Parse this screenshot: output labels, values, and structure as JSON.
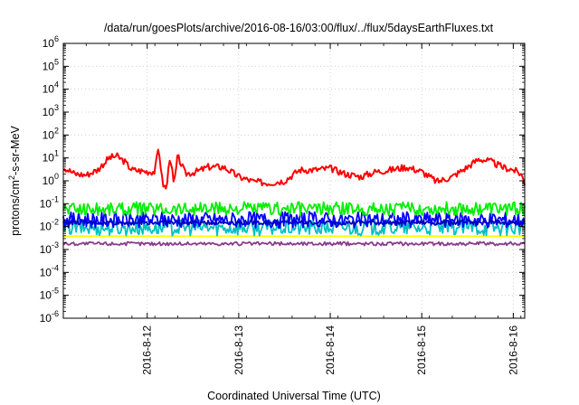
{
  "chart_data": {
    "type": "line",
    "title": "/data/run/goesPlots/archive/2016-08-16/03:00/flux/../flux/5daysEarthFluxes.txt",
    "xlabel": "Coordinated Universal Time (UTC)",
    "ylabel": {
      "pre": "protons/cm",
      "sup": "2",
      "post": "-s-sr-MeV"
    },
    "yscale": "log",
    "ylim": [
      1e-06,
      1000000.0
    ],
    "xlim": [
      "2016-08-11 02:00",
      "2016-08-16 03:00"
    ],
    "y_ticks": [
      {
        "value": 1e-06,
        "base": "10",
        "exp": "-6"
      },
      {
        "value": 1e-05,
        "base": "10",
        "exp": "-5"
      },
      {
        "value": 0.0001,
        "base": "10",
        "exp": "-4"
      },
      {
        "value": 0.001,
        "base": "10",
        "exp": "-3"
      },
      {
        "value": 0.01,
        "base": "10",
        "exp": "-2"
      },
      {
        "value": 0.1,
        "base": "10",
        "exp": "-1"
      },
      {
        "value": 1.0,
        "base": "10",
        "exp": "0"
      },
      {
        "value": 10.0,
        "base": "10",
        "exp": "1"
      },
      {
        "value": 100.0,
        "base": "10",
        "exp": "2"
      },
      {
        "value": 1000.0,
        "base": "10",
        "exp": "3"
      },
      {
        "value": 10000.0,
        "base": "10",
        "exp": "4"
      },
      {
        "value": 100000.0,
        "base": "10",
        "exp": "5"
      },
      {
        "value": 1000000.0,
        "base": "10",
        "exp": "6"
      }
    ],
    "x_ticks": [
      {
        "date": "2016-08-12 00:00",
        "label": "2016-8-12"
      },
      {
        "date": "2016-08-13 00:00",
        "label": "2016-8-13"
      },
      {
        "date": "2016-08-14 00:00",
        "label": "2016-8-14"
      },
      {
        "date": "2016-08-15 00:00",
        "label": "2016-8-15"
      },
      {
        "date": "2016-08-16 00:00",
        "label": "2016-8-16"
      }
    ],
    "grid": true,
    "series": [
      {
        "color": "#ffff00",
        "noise": 0,
        "points": [
          [
            "2016-08-11 02:00",
            0.0038
          ],
          [
            "2016-08-12 00:00",
            0.0038
          ],
          [
            "2016-08-13 00:00",
            0.0038
          ],
          [
            "2016-08-14 00:00",
            0.0038
          ],
          [
            "2016-08-15 00:00",
            0.0038
          ],
          [
            "2016-08-16 03:00",
            0.0038
          ]
        ]
      },
      {
        "color": "#00c0c0",
        "noise": 0.35,
        "points": [
          [
            "2016-08-11 02:00",
            0.009
          ],
          [
            "2016-08-12 00:00",
            0.009
          ],
          [
            "2016-08-13 00:00",
            0.009
          ],
          [
            "2016-08-14 00:00",
            0.009
          ],
          [
            "2016-08-15 00:00",
            0.009
          ],
          [
            "2016-08-16 03:00",
            0.009
          ]
        ]
      },
      {
        "color": "#0000ff",
        "noise": 0.35,
        "points": [
          [
            "2016-08-11 02:00",
            0.02
          ],
          [
            "2016-08-12 00:00",
            0.02
          ],
          [
            "2016-08-13 00:00",
            0.02
          ],
          [
            "2016-08-14 00:00",
            0.02
          ],
          [
            "2016-08-15 00:00",
            0.02
          ],
          [
            "2016-08-16 03:00",
            0.02
          ]
        ]
      },
      {
        "color": "#0000c0",
        "noise": 0.1,
        "points": [
          [
            "2016-08-11 02:00",
            0.015
          ],
          [
            "2016-08-12 00:00",
            0.015
          ],
          [
            "2016-08-13 00:00",
            0.015
          ],
          [
            "2016-08-14 00:00",
            0.015
          ],
          [
            "2016-08-15 00:00",
            0.015
          ],
          [
            "2016-08-16 03:00",
            0.015
          ]
        ]
      },
      {
        "color": "#00ee00",
        "noise": 0.3,
        "points": [
          [
            "2016-08-11 02:00",
            0.06
          ],
          [
            "2016-08-12 00:00",
            0.06
          ],
          [
            "2016-08-13 00:00",
            0.06
          ],
          [
            "2016-08-14 00:00",
            0.06
          ],
          [
            "2016-08-15 00:00",
            0.06
          ],
          [
            "2016-08-16 03:00",
            0.06
          ]
        ]
      },
      {
        "color": "#8b3a8b",
        "noise": 0.08,
        "points": [
          [
            "2016-08-11 02:00",
            0.0018
          ],
          [
            "2016-08-12 00:00",
            0.0018
          ],
          [
            "2016-08-13 00:00",
            0.0018
          ],
          [
            "2016-08-14 00:00",
            0.0018
          ],
          [
            "2016-08-15 00:00",
            0.0018
          ],
          [
            "2016-08-16 03:00",
            0.0018
          ]
        ]
      },
      {
        "color": "#ff0000",
        "noise": 0.15,
        "points": [
          [
            "2016-08-11 02:00",
            4.0
          ],
          [
            "2016-08-11 05:00",
            2.0
          ],
          [
            "2016-08-11 08:00",
            1.8
          ],
          [
            "2016-08-11 11:00",
            3.0
          ],
          [
            "2016-08-11 14:00",
            10.0
          ],
          [
            "2016-08-11 16:00",
            12.0
          ],
          [
            "2016-08-11 18:00",
            7.0
          ],
          [
            "2016-08-11 20:00",
            3.0
          ],
          [
            "2016-08-12 00:00",
            2.5
          ],
          [
            "2016-08-12 02:00",
            2.5
          ],
          [
            "2016-08-12 03:00",
            30.0
          ],
          [
            "2016-08-12 04:00",
            0.8
          ],
          [
            "2016-08-12 05:00",
            0.4
          ],
          [
            "2016-08-12 06:00",
            15.0
          ],
          [
            "2016-08-12 07:00",
            0.6
          ],
          [
            "2016-08-12 08:00",
            12.0
          ],
          [
            "2016-08-12 10:00",
            2.0
          ],
          [
            "2016-08-12 13:00",
            2.5
          ],
          [
            "2016-08-12 16:00",
            4.0
          ],
          [
            "2016-08-12 20:00",
            4.0
          ],
          [
            "2016-08-13 00:00",
            1.5
          ],
          [
            "2016-08-13 04:00",
            0.9
          ],
          [
            "2016-08-13 08:00",
            0.8
          ],
          [
            "2016-08-13 12:00",
            1.0
          ],
          [
            "2016-08-13 16:00",
            3.0
          ],
          [
            "2016-08-13 20:00",
            3.0
          ],
          [
            "2016-08-14 00:00",
            3.5
          ],
          [
            "2016-08-14 04:00",
            2.0
          ],
          [
            "2016-08-14 08:00",
            1.5
          ],
          [
            "2016-08-14 12:00",
            2.5
          ],
          [
            "2016-08-14 16:00",
            3.0
          ],
          [
            "2016-08-14 20:00",
            4.0
          ],
          [
            "2016-08-15 00:00",
            2.5
          ],
          [
            "2016-08-15 04:00",
            0.9
          ],
          [
            "2016-08-15 08:00",
            1.5
          ],
          [
            "2016-08-15 12:00",
            4.0
          ],
          [
            "2016-08-15 15:00",
            9.0
          ],
          [
            "2016-08-15 18:00",
            7.0
          ],
          [
            "2016-08-15 21:00",
            4.0
          ],
          [
            "2016-08-16 00:00",
            3.0
          ],
          [
            "2016-08-16 02:00",
            2.0
          ],
          [
            "2016-08-16 03:00",
            0.8
          ]
        ]
      }
    ]
  }
}
